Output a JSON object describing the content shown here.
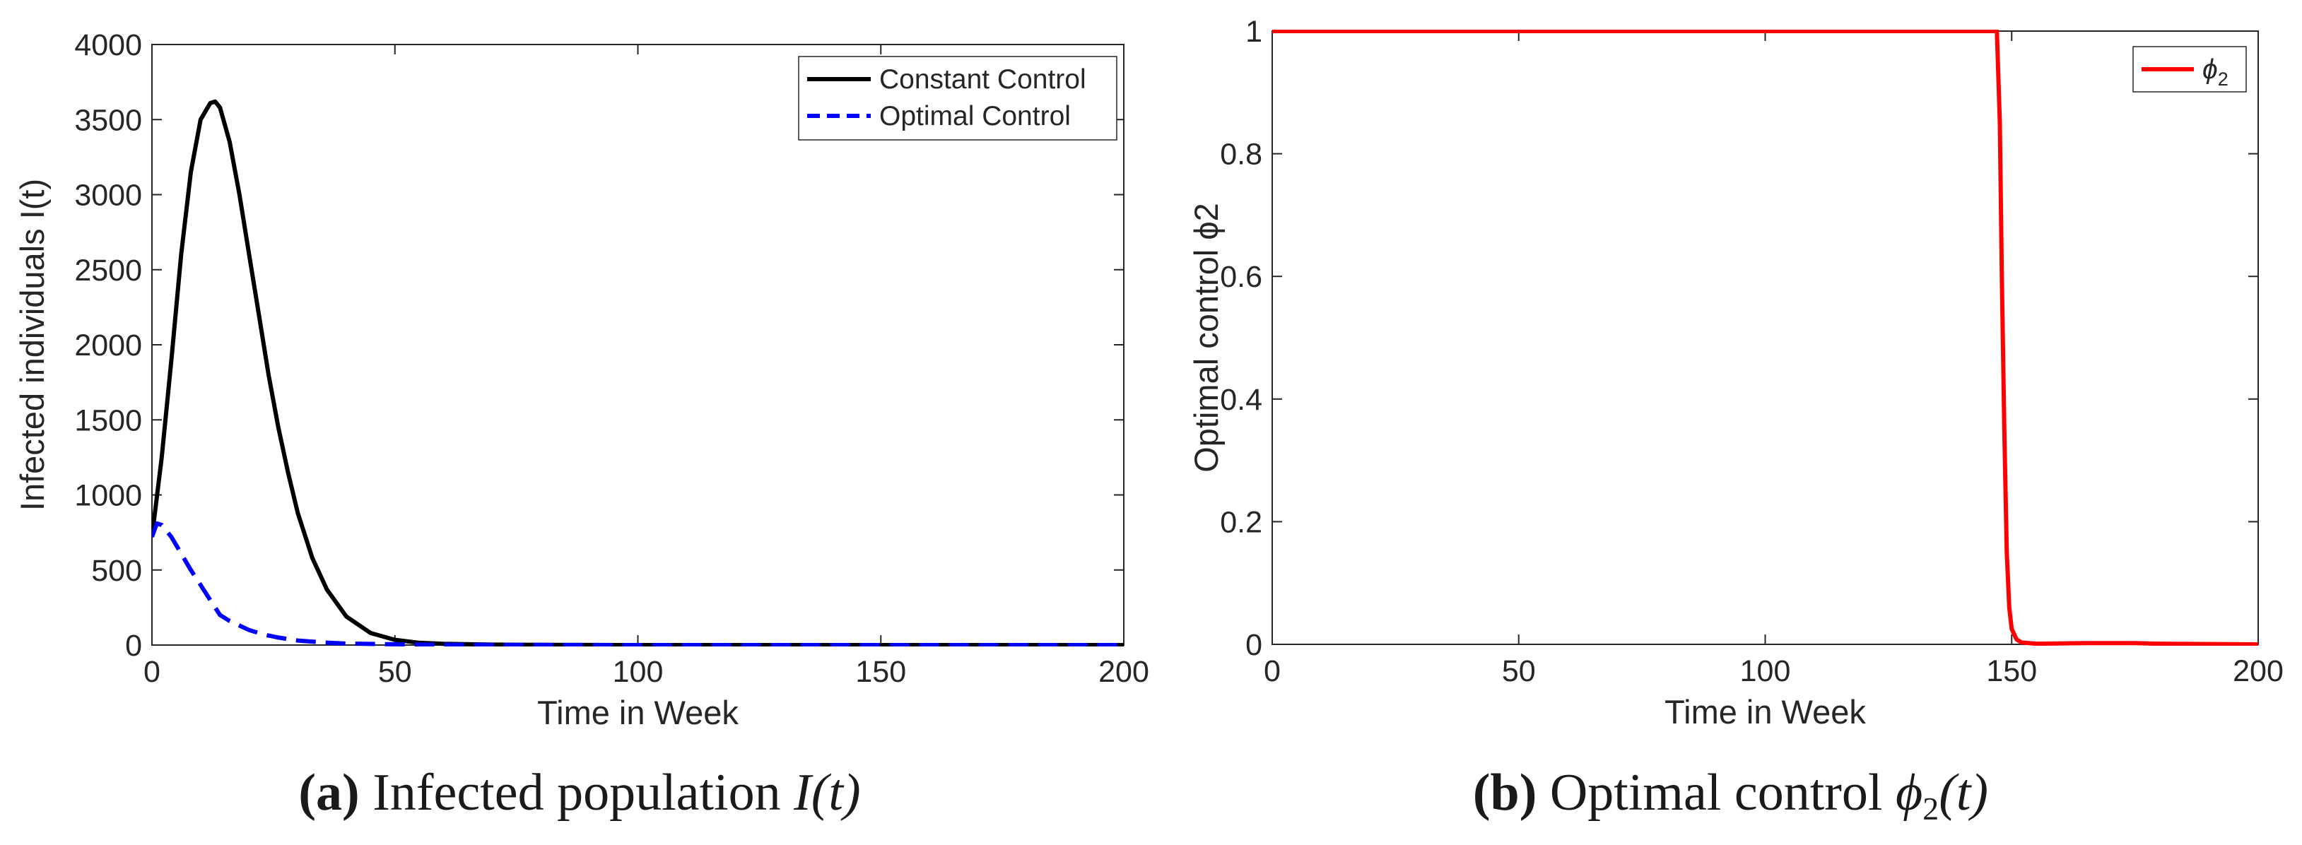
{
  "chart_data": [
    {
      "type": "line",
      "xlabel": "Time in Week",
      "ylabel": "Infected individuals I(t)",
      "xlim": [
        0,
        200
      ],
      "ylim": [
        0,
        4000
      ],
      "xticks": [
        "0",
        "50",
        "100",
        "150",
        "200"
      ],
      "yticks": [
        "0",
        "500",
        "1000",
        "1500",
        "2000",
        "2500",
        "3000",
        "3500",
        "4000"
      ],
      "legend_placement": "top-right",
      "grid": false,
      "series": [
        {
          "name": "Constant Control",
          "color": "#000000",
          "style": "solid",
          "x": [
            0,
            2,
            4,
            6,
            8,
            10,
            12,
            13,
            14,
            16,
            18,
            20,
            22,
            24,
            26,
            28,
            30,
            33,
            36,
            40,
            45,
            50,
            55,
            60,
            70,
            80,
            100,
            150,
            200
          ],
          "y": [
            720,
            1250,
            1900,
            2600,
            3150,
            3500,
            3610,
            3620,
            3580,
            3350,
            3000,
            2600,
            2200,
            1800,
            1450,
            1150,
            880,
            580,
            370,
            190,
            80,
            35,
            15,
            8,
            3,
            1,
            0,
            0,
            0
          ]
        },
        {
          "name": "Optimal Control",
          "color": "#0000ff",
          "style": "dashed",
          "x": [
            0,
            1,
            2,
            4,
            6,
            8,
            10,
            12,
            14,
            16,
            18,
            20,
            23,
            26,
            30,
            35,
            40,
            50,
            60,
            80,
            100,
            150,
            200
          ],
          "y": [
            720,
            810,
            800,
            720,
            610,
            500,
            400,
            300,
            200,
            160,
            130,
            100,
            70,
            50,
            30,
            18,
            10,
            5,
            2,
            1,
            0,
            0,
            0
          ]
        }
      ]
    },
    {
      "type": "line",
      "xlabel": "Time in Week",
      "ylabel": "Optimal  control  ϕ2",
      "xlim": [
        0,
        200
      ],
      "ylim": [
        0,
        1
      ],
      "xticks": [
        "0",
        "50",
        "100",
        "150",
        "200"
      ],
      "yticks": [
        "0",
        "0.2",
        "0.4",
        "0.6",
        "0.8",
        "1"
      ],
      "legend_placement": "top-right",
      "grid": false,
      "series": [
        {
          "name": "ϕ2",
          "color": "#ff0000",
          "style": "solid",
          "x": [
            0,
            50,
            100,
            145,
            147,
            147.6,
            148,
            148.5,
            149,
            149.5,
            150,
            151,
            152,
            155,
            165,
            175,
            180,
            200
          ],
          "y": [
            1,
            1,
            1,
            1,
            1,
            0.85,
            0.6,
            0.35,
            0.15,
            0.06,
            0.025,
            0.008,
            0.003,
            0.001,
            0.002,
            0.002,
            0.001,
            0
          ]
        }
      ]
    }
  ],
  "captions": [
    {
      "tag": "(a)",
      "text": "Infected population",
      "math": "I(t)"
    },
    {
      "tag": "(b)",
      "text": "Optimal control",
      "math_symbol": "ϕ",
      "math_sub": "2",
      "math_arg": "(t)"
    }
  ]
}
